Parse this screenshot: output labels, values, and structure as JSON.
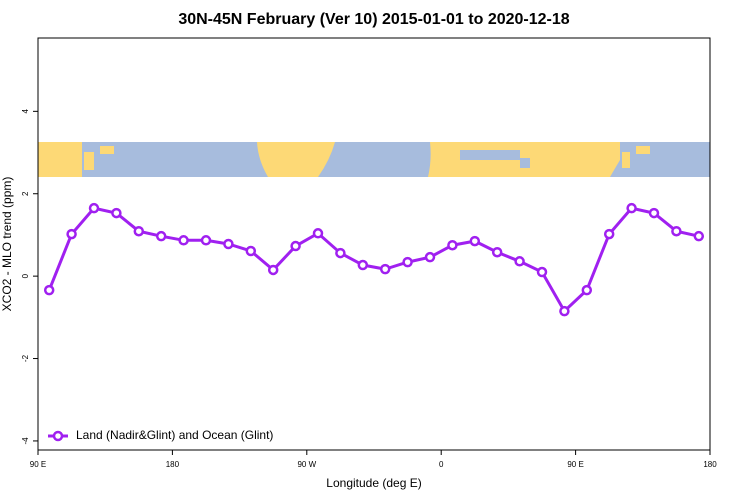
{
  "chart_data": {
    "type": "line",
    "title": "30N-45N February (Ver 10)   2015-01-01 to 2020-12-18",
    "x_label": "Longitude (deg E)",
    "y_label": "XCO2 - MLO trend (ppm)",
    "x": [
      97.5,
      112.5,
      127.5,
      142.5,
      157.5,
      172.5,
      187.5,
      202.5,
      217.5,
      232.5,
      247.5,
      262.5,
      277.5,
      292.5,
      307.5,
      322.5,
      337.5,
      352.5,
      367.5,
      382.5,
      397.5,
      412.5,
      427.5,
      442.5,
      457.5,
      472.5,
      487.5,
      502.5,
      517.5,
      532.5
    ],
    "series": [
      {
        "name": "Land (Nadir&Glint) and Ocean (Glint)",
        "color": "#a020f0",
        "values": [
          -0.34,
          1.02,
          1.65,
          1.53,
          1.09,
          0.97,
          0.87,
          0.87,
          0.78,
          0.61,
          0.15,
          0.73,
          1.04,
          0.56,
          0.27,
          0.17,
          0.34,
          0.46,
          0.75,
          0.85,
          0.58,
          0.36,
          0.1,
          -0.85,
          -0.34,
          1.02,
          1.65,
          1.53,
          1.09,
          0.97
        ]
      }
    ],
    "xlim": [
      90,
      540
    ],
    "xticks": [
      {
        "value": 90,
        "label": "90 E"
      },
      180,
      {
        "value": 270,
        "label": "90 W"
      },
      {
        "value": 360,
        "label": "0"
      },
      {
        "value": 450,
        "label": "90 E"
      },
      {
        "value": 540,
        "label": "180"
      }
    ],
    "ylim": [
      -4.22,
      5.78
    ],
    "yticks": [
      -4,
      -2,
      0,
      2,
      4
    ],
    "legend": "bottom-left"
  }
}
